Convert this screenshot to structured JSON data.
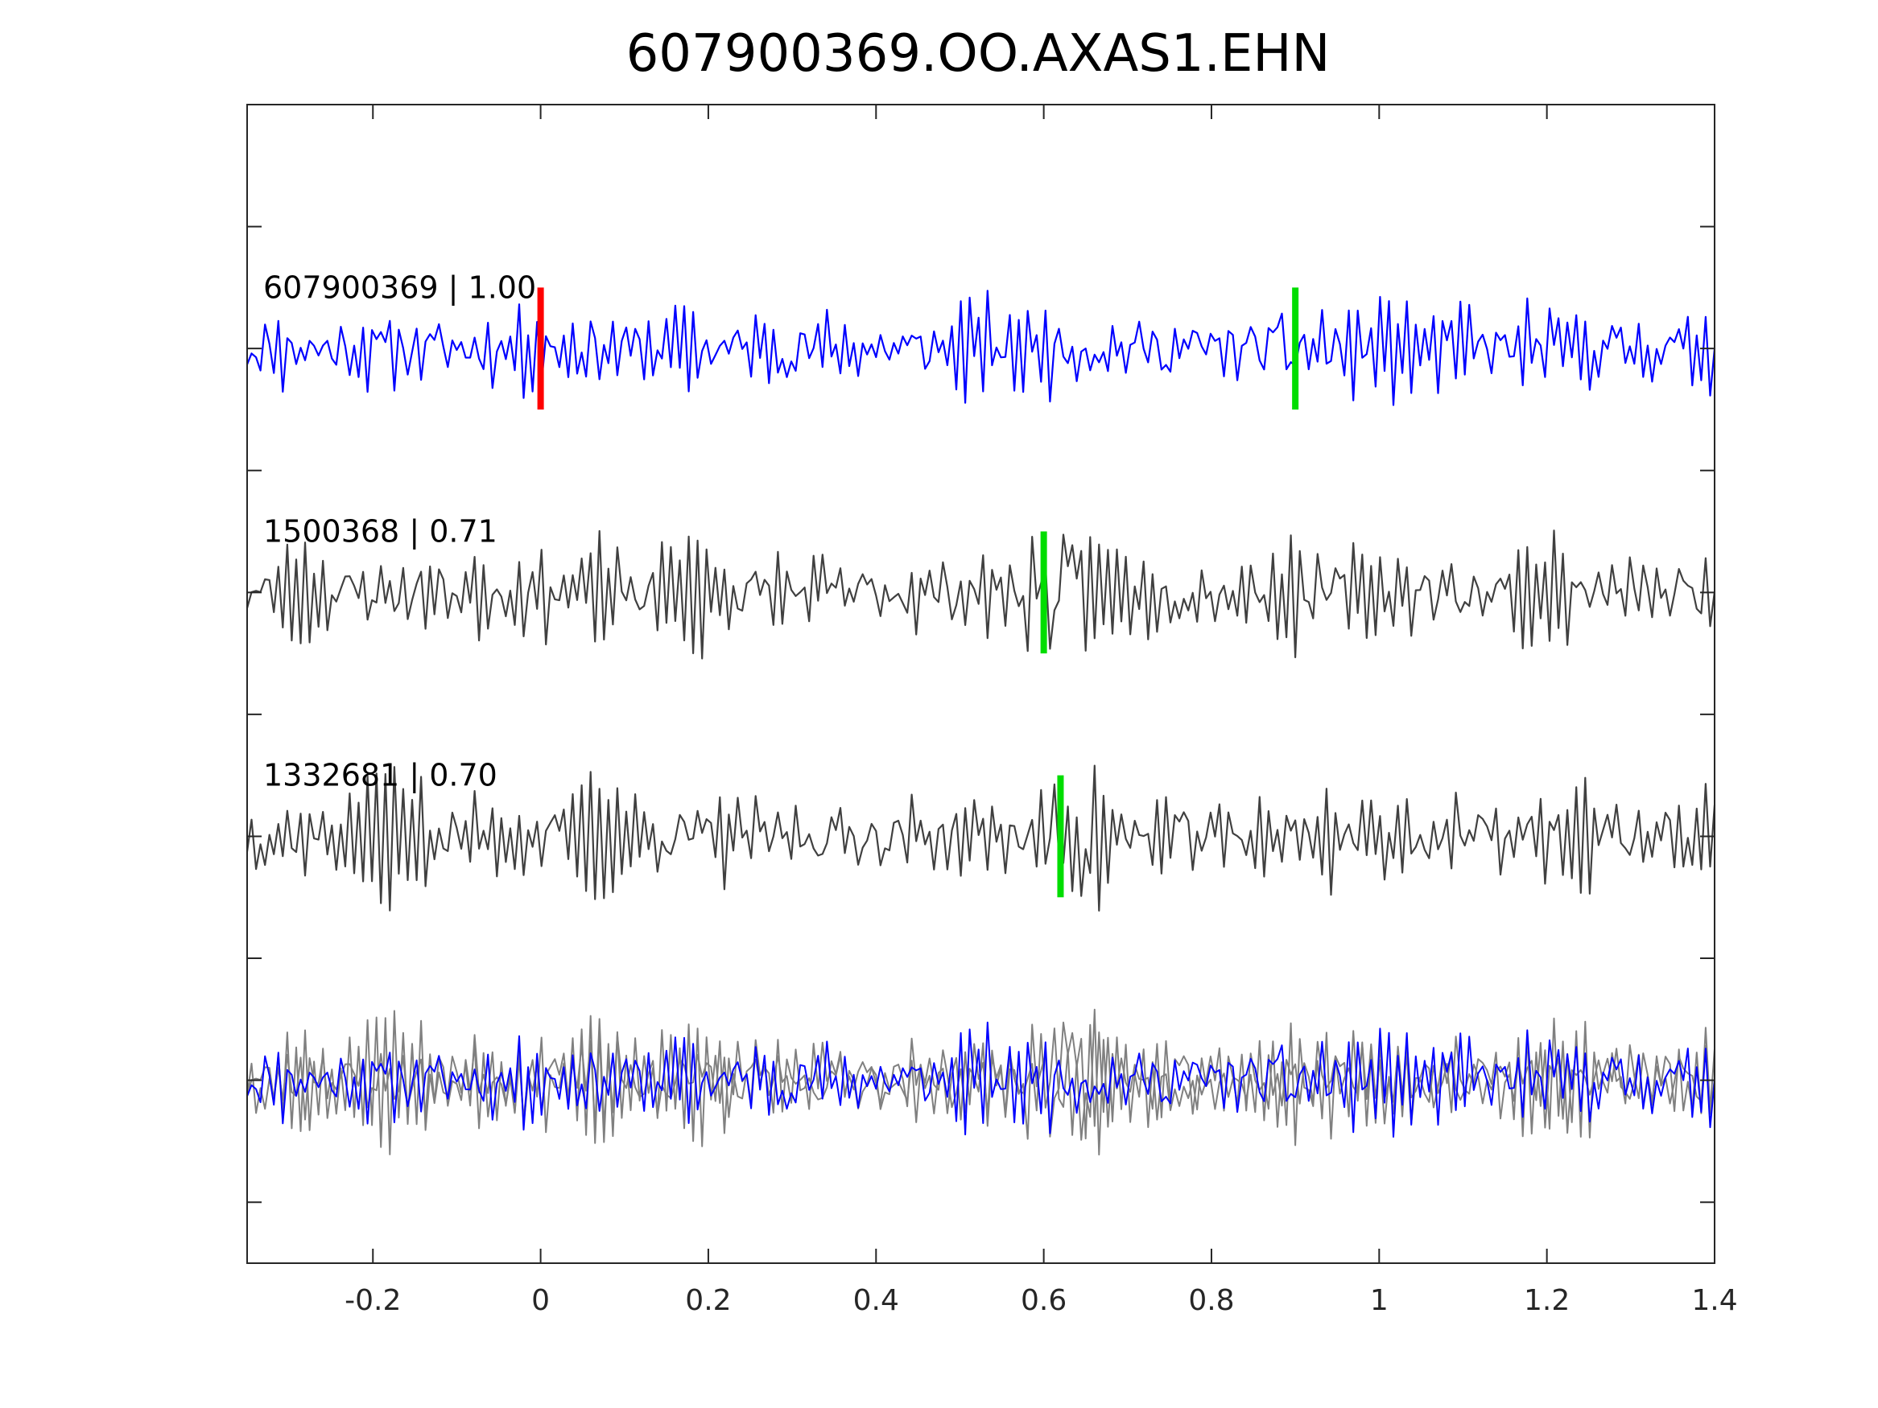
{
  "chart_data": {
    "type": "line",
    "title": "607900369.OO.AXAS1.EHN",
    "xlabel": "",
    "ylabel": "",
    "xlim": [
      -0.35,
      1.4
    ],
    "xticks": [
      -0.2,
      0,
      0.2,
      0.4,
      0.6,
      0.8,
      1,
      1.2,
      1.4
    ],
    "xtick_labels": [
      "-0.2",
      "0",
      "0.2",
      "0.4",
      "0.6",
      "0.8",
      "1",
      "1.2",
      "1.4"
    ],
    "yticks": [
      -5.5,
      -4.5,
      -3.5,
      -2.5,
      -1.5,
      -0.5,
      0.5,
      1.5,
      2.5,
      3.5
    ],
    "ylim": [
      -6,
      3.5
    ],
    "grid": false,
    "traces": [
      {
        "label": "607900369 | 1.00",
        "id": "607900369",
        "correlation": 1.0,
        "color": "#0000ff",
        "offset": 1.5,
        "seed": 11,
        "picks": [
          {
            "time": 0.0,
            "color": "#ff0000"
          },
          {
            "time": 0.9,
            "color": "#00dd00"
          }
        ]
      },
      {
        "label": "1500368 | 0.71",
        "id": "1500368",
        "correlation": 0.71,
        "color": "#404040",
        "offset": -0.5,
        "seed": 23,
        "picks": [
          {
            "time": 0.6,
            "color": "#00dd00"
          }
        ]
      },
      {
        "label": "1332681 | 0.70",
        "id": "1332681",
        "correlation": 0.7,
        "color": "#404040",
        "offset": -2.5,
        "seed": 37,
        "picks": [
          {
            "time": 0.62,
            "color": "#00dd00"
          }
        ]
      }
    ],
    "overlay": {
      "offset": -4.5,
      "stack_colors": [
        "#808080",
        "#808080",
        "#0000ff"
      ]
    }
  }
}
